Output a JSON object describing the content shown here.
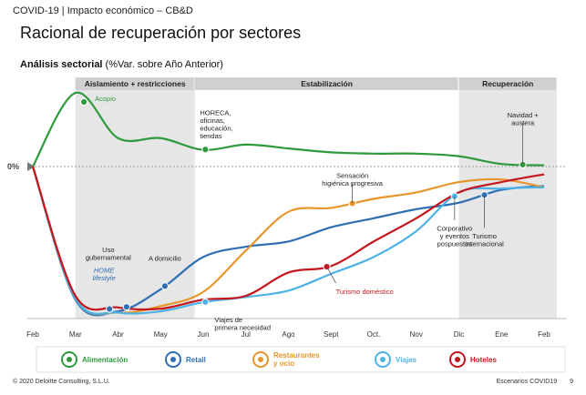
{
  "header": {
    "breadcrumb": "COVID-19 | Impacto económico – CB&D",
    "title": "Racional de recuperación por sectores",
    "subtitle_bold": "Análisis sectorial",
    "subtitle_rest": " (%Var. sobre Año Anterior)"
  },
  "footer": {
    "copyright": "© 2020 Deloitte Consulting, S.L.U.",
    "deck": "Escenarios COVID19",
    "page": "9"
  },
  "phases": [
    {
      "label": "Aislamiento + restricciones",
      "shaded": true
    },
    {
      "label": "Estabilización",
      "shaded": false
    },
    {
      "label": "Recuperación",
      "shaded": true
    }
  ],
  "zero_label": "0%",
  "colors": {
    "Alimentación": "#2e9a3c",
    "Retail": "#2f6fb3",
    "Restaurantes y ocio": "#e8962b",
    "Viajes": "#4db3e6",
    "Hoteles": "#c4161c",
    "phase_shade": "#e6e6e6",
    "phase_header": "#d0d0d0"
  },
  "chart_data": {
    "type": "line",
    "x": [
      "Feb",
      "Mar",
      "Abr",
      "May",
      "Jun",
      "Jul",
      "Ago",
      "Sept",
      "Oct.",
      "Nov",
      "Dic",
      "Ene",
      "Feb"
    ],
    "ylabel": "%Var. sobre Año Anterior",
    "y_reference": "0%",
    "phases": [
      {
        "label": "Aislamiento + restricciones",
        "from": 1,
        "to": 3.8
      },
      {
        "label": "Estabilización",
        "from": 3.8,
        "to": 10
      },
      {
        "label": "Recuperación",
        "from": 10,
        "to": 12.3
      }
    ],
    "series": [
      {
        "name": "Alimentación",
        "values": [
          0,
          57,
          22,
          22,
          13,
          17,
          14,
          11,
          10,
          10,
          8,
          2,
          1
        ]
      },
      {
        "name": "Retail",
        "values": [
          0,
          -103,
          -112,
          -95,
          -70,
          -62,
          -58,
          -47,
          -40,
          -33,
          -28,
          -18,
          -15
        ]
      },
      {
        "name": "Restaurantes y ocio",
        "values": [
          0,
          -102,
          -113,
          -108,
          -97,
          -65,
          -35,
          -32,
          -25,
          -20,
          -12,
          -10,
          -16
        ]
      },
      {
        "name": "Viajes",
        "values": [
          0,
          -102,
          -113,
          -112,
          -105,
          -101,
          -96,
          -83,
          -70,
          -50,
          -20,
          -17,
          -16
        ]
      },
      {
        "name": "Hoteles",
        "values": [
          0,
          -100,
          -109,
          -110,
          -103,
          -100,
          -82,
          -77,
          -58,
          -40,
          -20,
          -12,
          -6
        ]
      }
    ],
    "annotations": [
      {
        "label": "Acopio",
        "x": 1.2,
        "series": "Alimentación"
      },
      {
        "label": "HORECA, oficinas, educación, tiendas",
        "x": 4.05,
        "series": "Alimentación"
      },
      {
        "label": "Uso gubernamental",
        "x": 2.2,
        "series": "Retail"
      },
      {
        "label": "HOME lifestyle",
        "x": 1.8,
        "series": "Retail"
      },
      {
        "label": "A domicilio",
        "x": 3.1,
        "series": "Retail"
      },
      {
        "label": "Sensación higiénica progresiva",
        "x": 7.5,
        "series": "Restaurantes y ocio"
      },
      {
        "label": "Viajes de primera necesidad",
        "x": 4.05,
        "series": "Viajes"
      },
      {
        "label": "Turismo doméstico",
        "x": 6.9,
        "series": "Hoteles"
      },
      {
        "label": "Corporativo y eventos pospuestos",
        "x": 9.9,
        "series": "Viajes"
      },
      {
        "label": "Navidad + austera",
        "x": 11.5,
        "series": "Alimentación"
      },
      {
        "label": "Turismo internacional",
        "x": 10.6,
        "series": "Retail"
      }
    ]
  },
  "legend": [
    {
      "label": "Alimentación",
      "icon": "basket-icon"
    },
    {
      "label": "Retail",
      "icon": "tag-icon"
    },
    {
      "label": "Restaurantes y ocio",
      "icon": "cutlery-icon"
    },
    {
      "label": "Viajes",
      "icon": "plane-icon"
    },
    {
      "label": "Hoteles",
      "icon": "bed-icon"
    }
  ]
}
